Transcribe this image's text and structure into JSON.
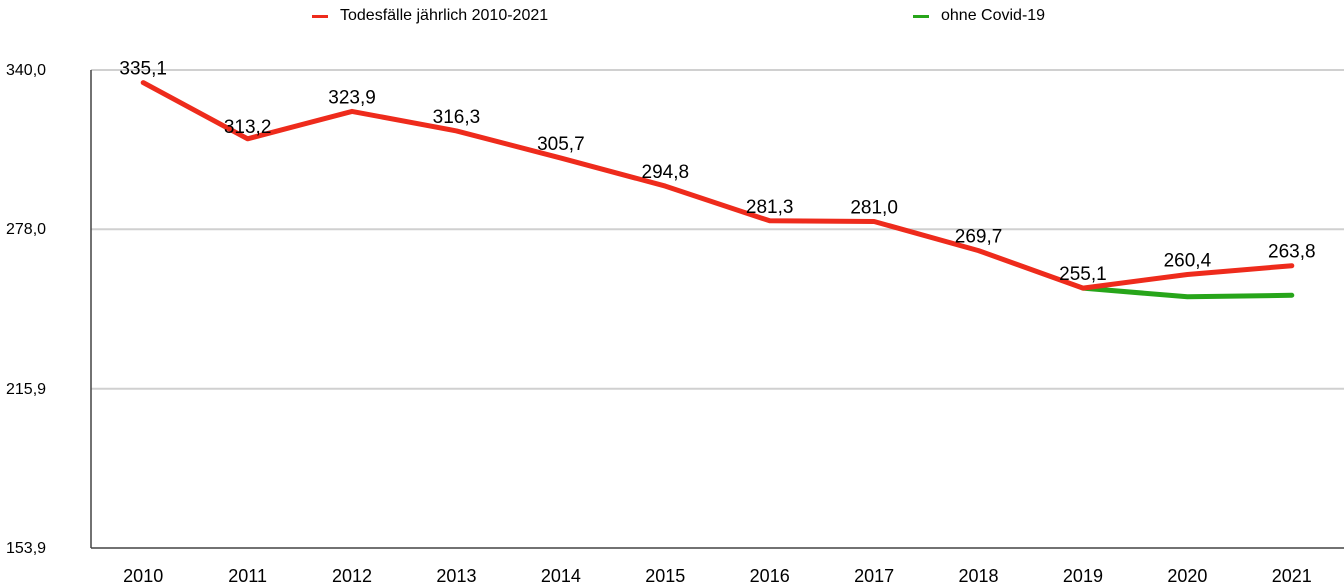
{
  "chart_data": {
    "type": "line",
    "title": "",
    "xlabel": "",
    "ylabel": "",
    "categories": [
      "2010",
      "2011",
      "2012",
      "2013",
      "2014",
      "2015",
      "2016",
      "2017",
      "2018",
      "2019",
      "2020",
      "2021"
    ],
    "ylim": [
      153.9,
      340.0
    ],
    "y_ticks": [
      340.0,
      278.0,
      215.9,
      153.9
    ],
    "y_tick_labels": [
      "340,0",
      "278,0",
      "215,9",
      "153,9"
    ],
    "grid": true,
    "legend_position": "top",
    "series": [
      {
        "name": "Todesfälle jährlich 2010-2021",
        "color": "#ee2b1c",
        "values": [
          335.1,
          313.2,
          323.9,
          316.3,
          305.7,
          294.8,
          281.3,
          281.0,
          269.7,
          255.1,
          260.4,
          263.8
        ],
        "labels": [
          "335,1",
          "313,2",
          "323,9",
          "316,3",
          "305,7",
          "294,8",
          "281,3",
          "281,0",
          "269,7",
          "255,1",
          "260,4",
          "263,8"
        ]
      },
      {
        "name": "ohne Covid-19",
        "color": "#27a51a",
        "values": [
          null,
          null,
          null,
          null,
          null,
          null,
          null,
          null,
          null,
          255.1,
          251.7,
          252.3
        ]
      }
    ]
  }
}
